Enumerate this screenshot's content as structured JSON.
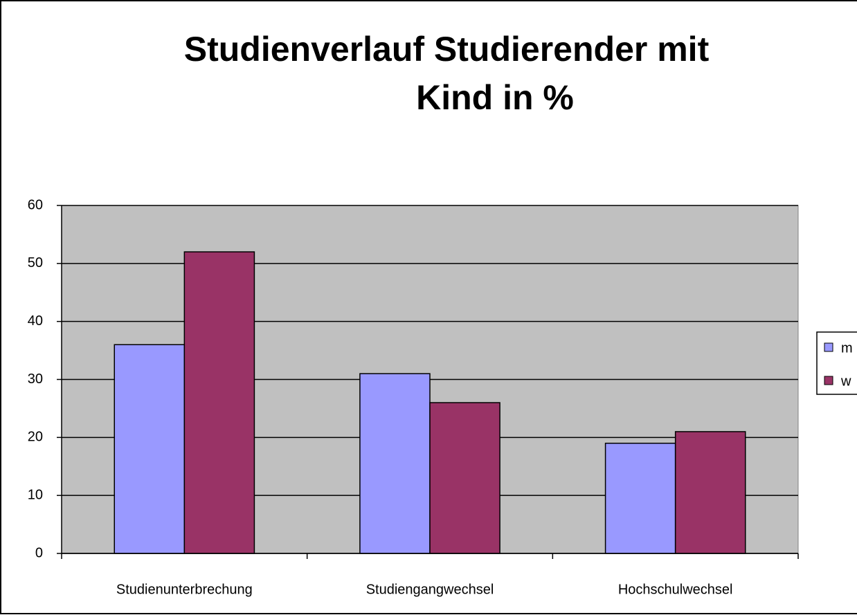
{
  "chart_data": {
    "type": "bar",
    "title": [
      "Studienverlauf Studierender mit",
      "Kind in %"
    ],
    "categories": [
      "Studienunterbrechung",
      "Studiengangwechsel",
      "Hochschulwechsel"
    ],
    "series": [
      {
        "name": "m",
        "color": "#9999ff",
        "values": [
          36,
          31,
          19
        ]
      },
      {
        "name": "w",
        "color": "#993366",
        "values": [
          52,
          26,
          21
        ]
      }
    ],
    "ylim": [
      0,
      60
    ],
    "yticks": [
      0,
      10,
      20,
      30,
      40,
      50,
      60
    ],
    "grid": true,
    "legend": "right"
  }
}
